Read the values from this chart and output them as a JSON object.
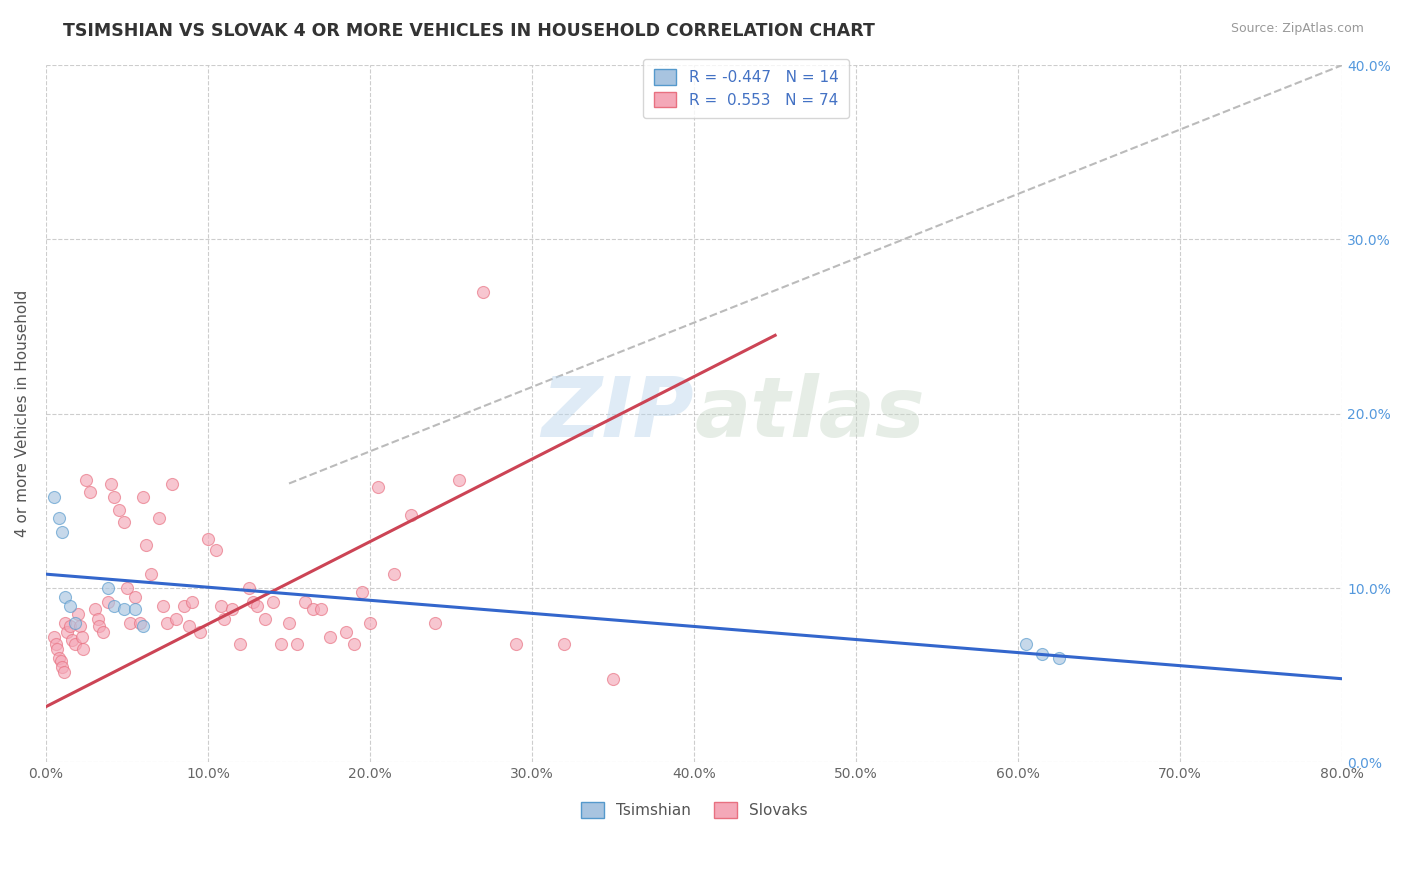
{
  "title": "TSIMSHIAN VS SLOVAK 4 OR MORE VEHICLES IN HOUSEHOLD CORRELATION CHART",
  "source_text": "Source: ZipAtlas.com",
  "ylabel": "4 or more Vehicles in Household",
  "watermark": "ZIPatlas",
  "xlim": [
    0.0,
    0.8
  ],
  "ylim": [
    0.0,
    0.4
  ],
  "xticks": [
    0.0,
    0.1,
    0.2,
    0.3,
    0.4,
    0.5,
    0.6,
    0.7,
    0.8
  ],
  "yticks": [
    0.0,
    0.1,
    0.2,
    0.3,
    0.4
  ],
  "xtick_labels": [
    "0.0%",
    "10.0%",
    "20.0%",
    "30.0%",
    "40.0%",
    "50.0%",
    "60.0%",
    "70.0%",
    "80.0%"
  ],
  "ytick_labels": [
    "0.0%",
    "10.0%",
    "20.0%",
    "30.0%",
    "40.0%"
  ],
  "background_color": "#ffffff",
  "grid_color": "#c8c8c8",
  "tsimshian_color": "#a8c4e0",
  "tsimshian_edge_color": "#5599cc",
  "slovak_color": "#f4a8b8",
  "slovak_edge_color": "#e87080",
  "tsimshian_line_color": "#3366cc",
  "slovak_line_color": "#cc4455",
  "dashed_line_color": "#bbbbbb",
  "legend_tsimshian_label": "Tsimshian",
  "legend_slovak_label": "Slovaks",
  "tsimshian_R": -0.447,
  "tsimshian_N": 14,
  "slovak_R": 0.553,
  "slovak_N": 74,
  "tsimshian_points_x": [
    0.005,
    0.008,
    0.01,
    0.012,
    0.015,
    0.018,
    0.038,
    0.042,
    0.048,
    0.055,
    0.06,
    0.605,
    0.615,
    0.625
  ],
  "tsimshian_points_y": [
    0.152,
    0.14,
    0.132,
    0.095,
    0.09,
    0.08,
    0.1,
    0.09,
    0.088,
    0.088,
    0.078,
    0.068,
    0.062,
    0.06
  ],
  "slovak_points_x": [
    0.005,
    0.006,
    0.007,
    0.008,
    0.009,
    0.01,
    0.011,
    0.012,
    0.013,
    0.015,
    0.016,
    0.018,
    0.02,
    0.021,
    0.022,
    0.023,
    0.025,
    0.027,
    0.03,
    0.032,
    0.033,
    0.035,
    0.038,
    0.04,
    0.042,
    0.045,
    0.048,
    0.05,
    0.052,
    0.055,
    0.058,
    0.06,
    0.062,
    0.065,
    0.07,
    0.072,
    0.075,
    0.078,
    0.08,
    0.085,
    0.088,
    0.09,
    0.095,
    0.1,
    0.105,
    0.108,
    0.11,
    0.115,
    0.12,
    0.125,
    0.128,
    0.13,
    0.135,
    0.14,
    0.145,
    0.15,
    0.155,
    0.16,
    0.165,
    0.17,
    0.175,
    0.185,
    0.19,
    0.195,
    0.2,
    0.205,
    0.215,
    0.225,
    0.24,
    0.255,
    0.27,
    0.29,
    0.32,
    0.35
  ],
  "slovak_points_y": [
    0.072,
    0.068,
    0.065,
    0.06,
    0.058,
    0.055,
    0.052,
    0.08,
    0.075,
    0.078,
    0.07,
    0.068,
    0.085,
    0.078,
    0.072,
    0.065,
    0.162,
    0.155,
    0.088,
    0.082,
    0.078,
    0.075,
    0.092,
    0.16,
    0.152,
    0.145,
    0.138,
    0.1,
    0.08,
    0.095,
    0.08,
    0.152,
    0.125,
    0.108,
    0.14,
    0.09,
    0.08,
    0.16,
    0.082,
    0.09,
    0.078,
    0.092,
    0.075,
    0.128,
    0.122,
    0.09,
    0.082,
    0.088,
    0.068,
    0.1,
    0.092,
    0.09,
    0.082,
    0.092,
    0.068,
    0.08,
    0.068,
    0.092,
    0.088,
    0.088,
    0.072,
    0.075,
    0.068,
    0.098,
    0.08,
    0.158,
    0.108,
    0.142,
    0.08,
    0.162,
    0.27,
    0.068,
    0.068,
    0.048
  ],
  "tsimshian_trend_x": [
    0.0,
    0.8
  ],
  "tsimshian_trend_y": [
    0.108,
    0.048
  ],
  "slovak_trend_x": [
    0.0,
    0.45
  ],
  "slovak_trend_y": [
    0.032,
    0.245
  ],
  "dashed_trend_x": [
    0.15,
    0.8
  ],
  "dashed_trend_y": [
    0.16,
    0.4
  ],
  "marker_size": 75,
  "marker_alpha": 0.65,
  "title_fontsize": 12.5,
  "axis_label_fontsize": 11,
  "tick_fontsize": 10,
  "legend_fontsize": 11,
  "source_fontsize": 9
}
